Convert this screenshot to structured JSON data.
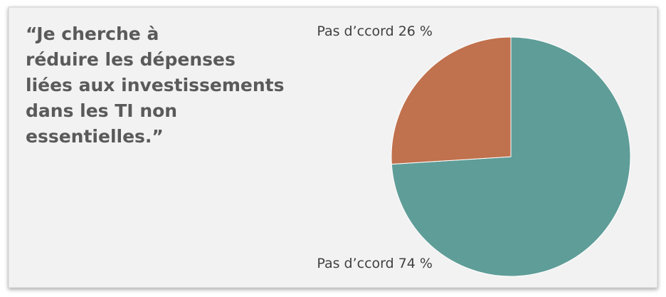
{
  "chart_data": {
    "type": "pie",
    "title": [
      "“Je cherche à",
      "réduire les dépenses",
      "liées aux investissements",
      "dans les TI non",
      "essentielles.”"
    ],
    "categories": [
      "Pas d’ccord",
      "Pas d’ccord"
    ],
    "values": [
      74,
      26
    ],
    "value_labels": [
      "74 %",
      "26 %"
    ],
    "colors": [
      "#5f9d98",
      "#c0714d"
    ]
  }
}
